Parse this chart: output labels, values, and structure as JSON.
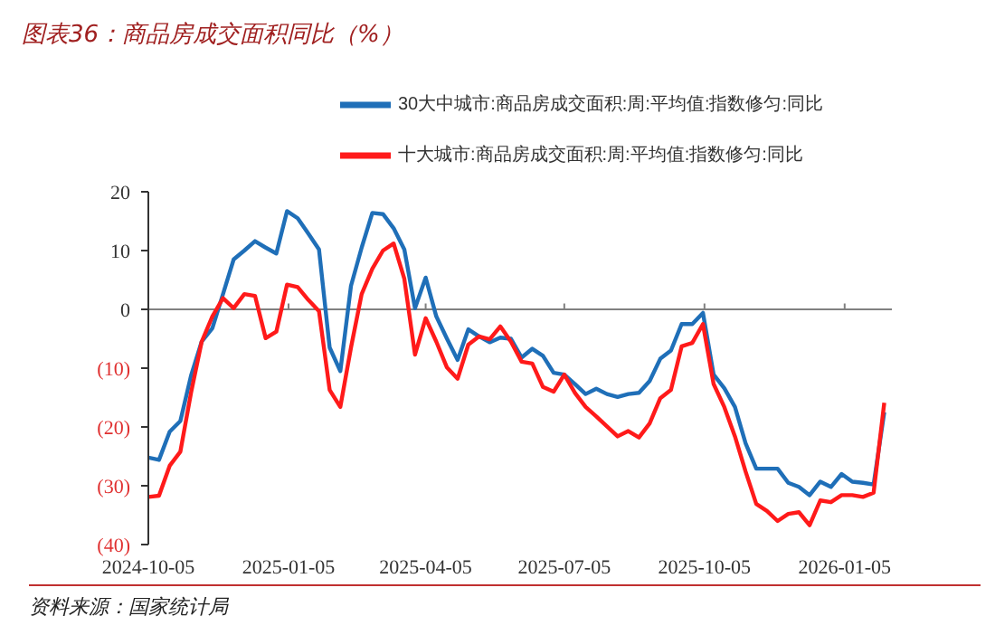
{
  "chart_data": {
    "type": "line",
    "title": "图表36：商品房成交面积同比（%）",
    "annotations": [
      "资料来源：国家统计局"
    ],
    "x": [
      "2024-10-05",
      "2024-10-12",
      "2024-10-19",
      "2024-10-26",
      "2024-11-02",
      "2024-11-09",
      "2024-11-16",
      "2024-11-23",
      "2024-11-30",
      "2024-12-07",
      "2024-12-14",
      "2024-12-21",
      "2024-12-28",
      "2025-01-04",
      "2025-01-11",
      "2025-01-18",
      "2025-01-25",
      "2025-02-01",
      "2025-02-08",
      "2025-02-15",
      "2025-02-22",
      "2025-03-01",
      "2025-03-08",
      "2025-03-15",
      "2025-03-22",
      "2025-03-29",
      "2025-04-05",
      "2025-04-12",
      "2025-04-19",
      "2025-04-26",
      "2025-05-03",
      "2025-05-10",
      "2025-05-17",
      "2025-05-24",
      "2025-05-31",
      "2025-06-07",
      "2025-06-14",
      "2025-06-21",
      "2025-06-28",
      "2025-07-05",
      "2025-07-12",
      "2025-07-19",
      "2025-07-26",
      "2025-08-02",
      "2025-08-09",
      "2025-08-16",
      "2025-08-23",
      "2025-08-30",
      "2025-09-06",
      "2025-09-13",
      "2025-09-20",
      "2025-09-27",
      "2025-10-04",
      "2025-10-11",
      "2025-10-18",
      "2025-10-25",
      "2025-11-01",
      "2025-11-08",
      "2025-11-15",
      "2025-11-22",
      "2025-11-29",
      "2025-12-06",
      "2025-12-13",
      "2025-12-20",
      "2025-12-27",
      "2026-01-03",
      "2026-01-10",
      "2026-01-17",
      "2026-01-24",
      "2026-01-31"
    ],
    "series": [
      {
        "name": "30大中城市:商品房成交面积:周:平均值:指数修匀:同比",
        "color": "#1f6fb8",
        "values": [
          -25.2,
          -25.6,
          -20.8,
          -19,
          -11.3,
          -5.5,
          -3.2,
          2.6,
          8.5,
          10,
          11.6,
          10.5,
          9.5,
          16.7,
          15.5,
          12.9,
          10.2,
          -6.5,
          -10.5,
          4,
          10.5,
          16.4,
          16.2,
          13.8,
          10.2,
          0.2,
          5.4,
          -1.2,
          -5,
          -8.6,
          -3.4,
          -4.6,
          -5.6,
          -4.8,
          -5,
          -8.2,
          -6.7,
          -7.9,
          -10.8,
          -11.1,
          -12.7,
          -14.4,
          -13.5,
          -14.4,
          -14.9,
          -14.4,
          -14.2,
          -12.2,
          -8.4,
          -7,
          -2.5,
          -2.5,
          -0.6,
          -11.1,
          -13.4,
          -16.6,
          -22.8,
          -27.1,
          -27.1,
          -27.1,
          -29.5,
          -30.2,
          -31.6,
          -29.3,
          -30.2,
          -28,
          -29.3,
          -29.5,
          -29.8,
          -17.5
        ]
      },
      {
        "name": "十大城市:商品房成交面积:周:平均值:指数修匀:同比",
        "color": "#ff1a1a",
        "values": [
          -31.9,
          -31.7,
          -26.6,
          -24.2,
          -14.2,
          -5.5,
          -1.2,
          1.9,
          0.2,
          2.6,
          2.3,
          -4.9,
          -3.8,
          4.2,
          3.8,
          1.6,
          -0.3,
          -13.7,
          -16.6,
          -6.5,
          2.6,
          6.9,
          10,
          11.2,
          5.2,
          -7.7,
          -1.5,
          -5.5,
          -9.9,
          -11.8,
          -6,
          -4.6,
          -5.1,
          -2.9,
          -5.5,
          -8.9,
          -9.2,
          -13.2,
          -14,
          -11.1,
          -14.2,
          -16.6,
          -18.2,
          -19.9,
          -21.6,
          -20.7,
          -21.8,
          -19.4,
          -15.1,
          -13.7,
          -6.3,
          -5.7,
          -2.5,
          -12.7,
          -16.6,
          -21.6,
          -27.6,
          -33.1,
          -34.3,
          -36,
          -34.8,
          -34.5,
          -36.7,
          -32.5,
          -32.8,
          -31.6,
          -31.6,
          -31.9,
          -31.2,
          -15.9
        ]
      }
    ],
    "xlim": [
      "2024-10-05",
      "2026-02-05"
    ],
    "xticks": [
      "2024-10-05",
      "2025-01-05",
      "2025-04-05",
      "2025-07-05",
      "2025-10-05",
      "2026-01-05"
    ],
    "ylim": [
      -40,
      20
    ],
    "yticks": [
      {
        "value": -40,
        "label": "(40)"
      },
      {
        "value": -30,
        "label": "(30)"
      },
      {
        "value": -20,
        "label": "(20)"
      },
      {
        "value": -10,
        "label": "(10)"
      },
      0,
      10,
      20
    ],
    "ref_lines": [
      {
        "axis": "y",
        "value": 0,
        "color": "#808080"
      }
    ],
    "legend": "top",
    "grid": false,
    "marker": "none",
    "line_style": "solid"
  }
}
